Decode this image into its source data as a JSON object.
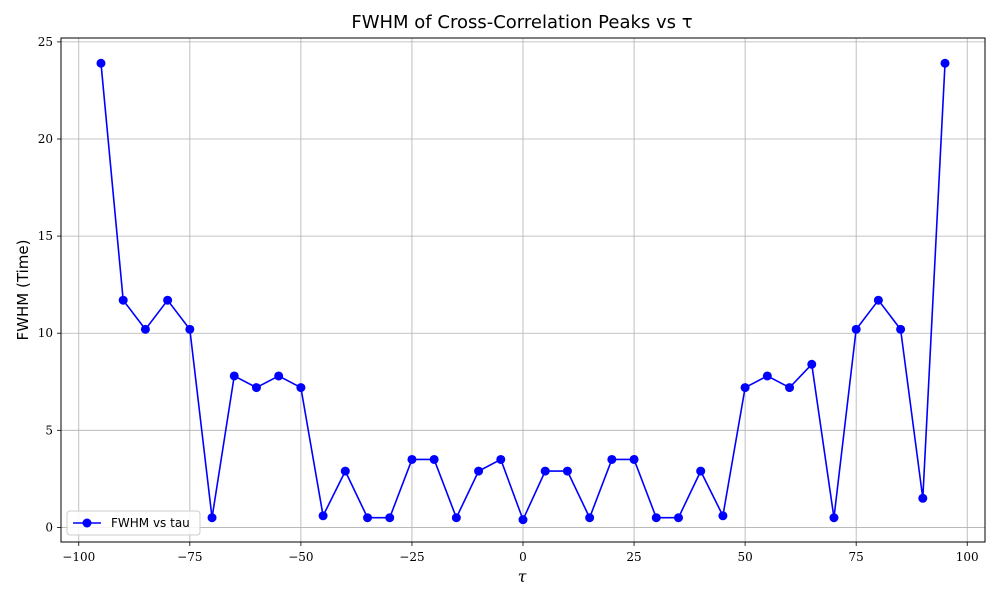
{
  "chart_data": {
    "type": "line",
    "title": "FWHM of Cross-Correlation Peaks vs τ",
    "xlabel": "τ",
    "ylabel": "FWHM (Time)",
    "xlim": [
      -104,
      104
    ],
    "ylim": [
      -0.75,
      25.2
    ],
    "xticks": [
      -100,
      -75,
      -50,
      -25,
      0,
      25,
      50,
      75,
      100
    ],
    "xtick_labels": [
      "−100",
      "−75",
      "−50",
      "−25",
      "0",
      "25",
      "50",
      "75",
      "100"
    ],
    "yticks": [
      0,
      5,
      10,
      15,
      20,
      25
    ],
    "ytick_labels": [
      "0",
      "5",
      "10",
      "15",
      "20",
      "25"
    ],
    "grid": true,
    "legend_position": "lower-left",
    "series": [
      {
        "name": "FWHM vs tau",
        "color": "#0000ff",
        "marker": "circle",
        "x": [
          -95,
          -90,
          -85,
          -80,
          -75,
          -70,
          -65,
          -60,
          -55,
          -50,
          -45,
          -40,
          -35,
          -30,
          -25,
          -20,
          -15,
          -10,
          -5,
          0,
          5,
          10,
          15,
          20,
          25,
          30,
          35,
          40,
          45,
          50,
          55,
          60,
          65,
          70,
          75,
          80,
          85,
          90,
          95
        ],
        "y": [
          23.9,
          11.7,
          10.2,
          11.7,
          10.2,
          0.5,
          7.8,
          7.2,
          7.8,
          7.2,
          0.6,
          2.9,
          0.5,
          0.5,
          3.5,
          3.5,
          0.5,
          2.9,
          3.5,
          0.4,
          2.9,
          2.9,
          0.5,
          3.5,
          3.5,
          0.5,
          0.5,
          2.9,
          0.6,
          7.2,
          7.8,
          7.2,
          8.4,
          0.5,
          10.2,
          11.7,
          10.2,
          1.5,
          23.9
        ]
      }
    ]
  }
}
